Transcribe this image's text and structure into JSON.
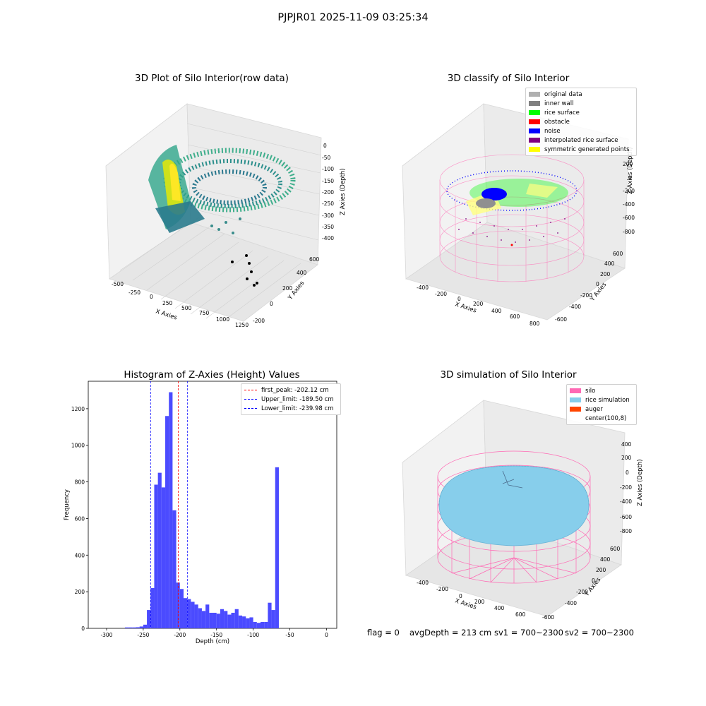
{
  "figure": {
    "suptitle": "PJPJR01 2025-11-09 03:25:34",
    "footer": {
      "flag": "flag = 0",
      "avg_depth": "avgDepth = 213 cm",
      "sv1": "sv1 = 700~2300",
      "sv2": "sv2 = 700~2300"
    }
  },
  "chart_data": [
    {
      "type": "scatter",
      "projection": "3d",
      "title": "3D Plot of Silo Interior(row data)",
      "xlabel": "X Axies",
      "ylabel": "Y Axies",
      "zlabel": "Z Axies (Depth)",
      "x_ticks": [
        "-500",
        "-250",
        "0",
        "250",
        "500",
        "750",
        "1000",
        "1250"
      ],
      "y_ticks": [
        "-200",
        "0",
        "200",
        "400",
        "600"
      ],
      "z_ticks": [
        "0",
        "-50",
        "-100",
        "-150",
        "-200",
        "-250",
        "-300",
        "-350",
        "-400"
      ],
      "colormap": "viridis",
      "outlier_points_color": "#5b2a86"
    },
    {
      "type": "scatter",
      "projection": "3d",
      "title": "3D classify of Silo Interior",
      "xlabel": "X Axies",
      "ylabel": "Y Axies",
      "zlabel": "Z Axies (Depth)",
      "x_ticks": [
        "-400",
        "-200",
        "0",
        "200",
        "400",
        "600",
        "800"
      ],
      "y_ticks": [
        "-600",
        "-400",
        "-200",
        "0",
        "200",
        "400",
        "600"
      ],
      "z_ticks": [
        "200",
        "0",
        "-200",
        "-400",
        "-600",
        "-800"
      ],
      "legend_position": "top-right",
      "legend": [
        {
          "label": "original data",
          "color": "#b0b0b0"
        },
        {
          "label": "inner wall",
          "color": "#808080"
        },
        {
          "label": "rice surface",
          "color": "#00ff00"
        },
        {
          "label": "obstacle",
          "color": "#ff0000"
        },
        {
          "label": "noise",
          "color": "#0000ff"
        },
        {
          "label": "interpolated rice surface",
          "color": "#800080"
        },
        {
          "label": "symmetric generated points",
          "color": "#ffff00"
        }
      ],
      "mesh_color": "#ff69b4"
    },
    {
      "type": "bar",
      "title": "Histogram of Z-Axies (Height) Values",
      "xlabel": "Depth (cm)",
      "ylabel": "Frequency",
      "xlim": [
        -325,
        14
      ],
      "ylim": [
        0,
        1350
      ],
      "x_ticks": [
        -300,
        -250,
        -200,
        -150,
        -100,
        -50,
        0
      ],
      "y_ticks": [
        0,
        200,
        400,
        600,
        800,
        1000,
        1200
      ],
      "bar_color": "#4b4bff",
      "bin_width": 5,
      "bins": [
        {
          "x": -275,
          "count": 5
        },
        {
          "x": -270,
          "count": 5
        },
        {
          "x": -265,
          "count": 5
        },
        {
          "x": -260,
          "count": 6
        },
        {
          "x": -255,
          "count": 10
        },
        {
          "x": -250,
          "count": 20
        },
        {
          "x": -245,
          "count": 100
        },
        {
          "x": -240,
          "count": 220
        },
        {
          "x": -235,
          "count": 785
        },
        {
          "x": -230,
          "count": 850
        },
        {
          "x": -225,
          "count": 770
        },
        {
          "x": -220,
          "count": 1160
        },
        {
          "x": -215,
          "count": 1290
        },
        {
          "x": -210,
          "count": 645
        },
        {
          "x": -205,
          "count": 250
        },
        {
          "x": -200,
          "count": 215
        },
        {
          "x": -195,
          "count": 165
        },
        {
          "x": -190,
          "count": 160
        },
        {
          "x": -185,
          "count": 145
        },
        {
          "x": -180,
          "count": 130
        },
        {
          "x": -175,
          "count": 110
        },
        {
          "x": -170,
          "count": 95
        },
        {
          "x": -165,
          "count": 130
        },
        {
          "x": -160,
          "count": 85
        },
        {
          "x": -155,
          "count": 85
        },
        {
          "x": -150,
          "count": 80
        },
        {
          "x": -145,
          "count": 105
        },
        {
          "x": -140,
          "count": 95
        },
        {
          "x": -135,
          "count": 75
        },
        {
          "x": -130,
          "count": 85
        },
        {
          "x": -125,
          "count": 105
        },
        {
          "x": -120,
          "count": 70
        },
        {
          "x": -115,
          "count": 65
        },
        {
          "x": -110,
          "count": 55
        },
        {
          "x": -105,
          "count": 60
        },
        {
          "x": -100,
          "count": 35
        },
        {
          "x": -95,
          "count": 30
        },
        {
          "x": -90,
          "count": 35
        },
        {
          "x": -85,
          "count": 35
        },
        {
          "x": -80,
          "count": 140
        },
        {
          "x": -75,
          "count": 100
        },
        {
          "x": -70,
          "count": 880
        }
      ],
      "lines": [
        {
          "label": "first_peak: -202.12 cm",
          "x": -202.12,
          "color": "#ff0000"
        },
        {
          "label": "Upper_limit: -189.50 cm",
          "x": -189.5,
          "color": "#0000ff"
        },
        {
          "label": "Lower_limit: -239.98 cm",
          "x": -239.98,
          "color": "#0000ff"
        }
      ],
      "legend_position": "top-right"
    },
    {
      "type": "surface",
      "projection": "3d",
      "title": "3D simulation of Silo Interior",
      "xlabel": "X Axies",
      "ylabel": "Y Axies",
      "zlabel": "Z Axies (Depth)",
      "x_ticks": [
        "-400",
        "-200",
        "0",
        "200",
        "400",
        "600"
      ],
      "y_ticks": [
        "-600",
        "-400",
        "-200",
        "0",
        "200",
        "400",
        "600"
      ],
      "z_ticks": [
        "400",
        "200",
        "0",
        "-200",
        "-400",
        "-600",
        "-800"
      ],
      "legend_position": "top-right",
      "legend": [
        {
          "label": "silo",
          "color": "#ff69b4"
        },
        {
          "label": "rice simulation",
          "color": "#87ceeb"
        },
        {
          "label": "auger",
          "color": "#ff4500"
        },
        {
          "label": "center(100,8)",
          "color": ""
        }
      ]
    }
  ]
}
